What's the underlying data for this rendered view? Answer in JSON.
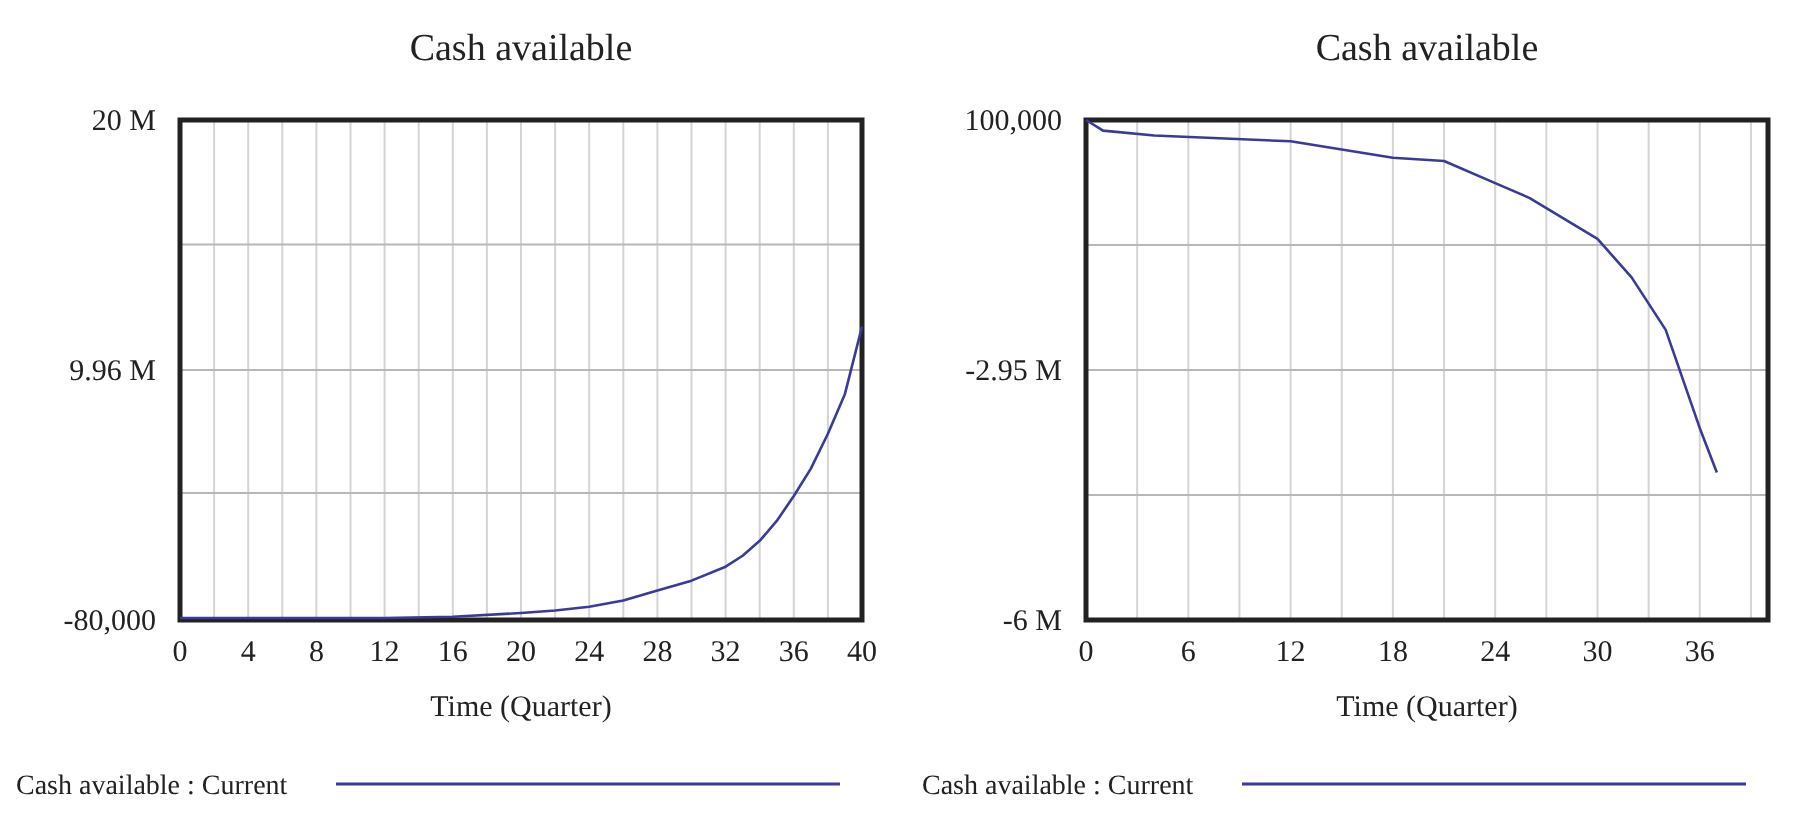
{
  "chart_data": [
    {
      "type": "line",
      "title": "Cash available",
      "xlabel": "Time (Quarter)",
      "xlim": [
        0,
        40
      ],
      "xticks": [
        0,
        4,
        8,
        12,
        16,
        20,
        24,
        28,
        32,
        36,
        40
      ],
      "ylim": [
        -80000,
        20000000
      ],
      "yticks": [
        {
          "value": -80000,
          "label": "-80,000"
        },
        {
          "value": 5020000,
          "label": null
        },
        {
          "value": 9960000,
          "label": "9.96 M"
        },
        {
          "value": 15000000,
          "label": null
        },
        {
          "value": 20000000,
          "label": "20 M"
        }
      ],
      "grid": true,
      "legend": "bottom",
      "series": [
        {
          "name": "Cash available : Current",
          "color": "#3a3a9a",
          "x": [
            0,
            4,
            8,
            12,
            16,
            20,
            22,
            24,
            26,
            28,
            30,
            32,
            33,
            34,
            35,
            36,
            37,
            38,
            39,
            40
          ],
          "values": [
            0,
            0,
            0,
            0,
            50000,
            200000,
            300000,
            450000,
            700000,
            1100000,
            1500000,
            2060000,
            2500000,
            3100000,
            3900000,
            4900000,
            6000000,
            7400000,
            9000000,
            11700000
          ]
        }
      ]
    },
    {
      "type": "line",
      "title": "Cash available",
      "xlabel": "Time (Quarter)",
      "xlim": [
        0,
        40
      ],
      "xticks": [
        0,
        6,
        12,
        18,
        24,
        30,
        36
      ],
      "ylim": [
        -6000000,
        100000
      ],
      "yticks": [
        {
          "value": 100000,
          "label": "100,000"
        },
        {
          "value": -1425000,
          "label": null
        },
        {
          "value": -2950000,
          "label": "-2.95 M"
        },
        {
          "value": -4475000,
          "label": null
        },
        {
          "value": -6000000,
          "label": "-6 M"
        }
      ],
      "grid": true,
      "legend": "bottom",
      "series": [
        {
          "name": "Cash available : Current",
          "color": "#3a3a9a",
          "x": [
            0,
            1,
            4,
            12,
            18,
            21,
            24,
            26,
            28,
            30,
            32,
            34,
            36,
            37
          ],
          "values": [
            100000,
            -30000,
            -90000,
            -160000,
            -360000,
            -400000,
            -670000,
            -850000,
            -1100000,
            -1350000,
            -1820000,
            -2460000,
            -3660000,
            -4200000
          ]
        }
      ]
    }
  ]
}
